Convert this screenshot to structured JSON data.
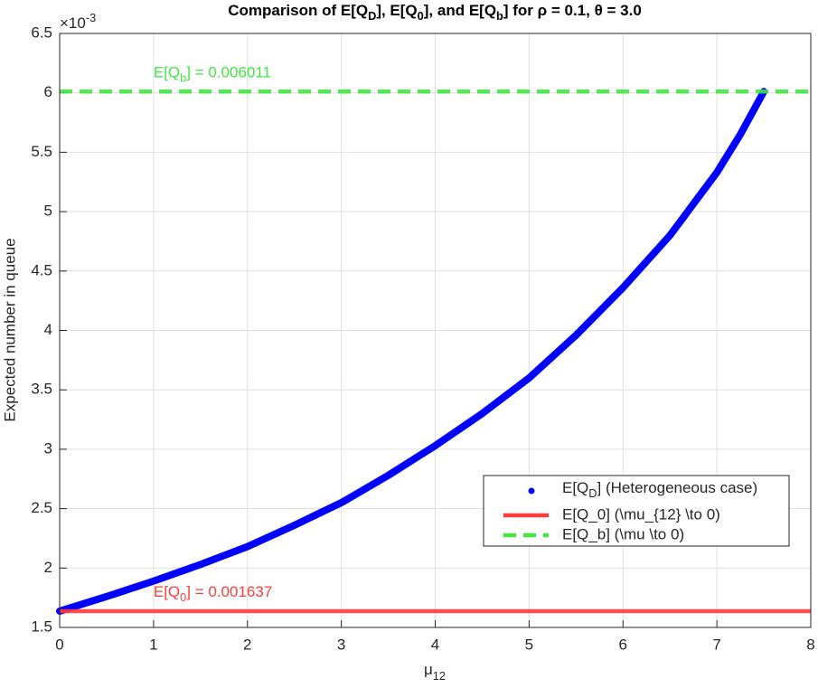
{
  "chart_data": {
    "type": "scatter",
    "title": [
      "Comparison of E[Q",
      "D",
      "], E[Q",
      "0",
      "], and E[Q",
      "b",
      "] for ρ = 0.1, θ = 3.0"
    ],
    "xlabel": [
      "μ",
      "12"
    ],
    "ylabel": "Expected number in queue",
    "y_exponent": [
      "×10",
      "-3"
    ],
    "xlim": [
      0,
      8
    ],
    "xticks": [
      0,
      1,
      2,
      3,
      4,
      5,
      6,
      7,
      8
    ],
    "ylim": [
      1.5,
      6.5
    ],
    "yticks": [
      1.5,
      2,
      2.5,
      3,
      3.5,
      4,
      4.5,
      5,
      5.5,
      6,
      6.5
    ],
    "grid": true,
    "legend": "southeast",
    "series": [
      {
        "name": [
          "E[Q",
          "D",
          "] (Heterogeneous case)"
        ],
        "color": "#0000ff",
        "x": [
          0,
          0.5,
          1,
          1.5,
          2,
          2.5,
          3,
          3.5,
          4,
          4.5,
          5,
          5.5,
          6,
          6.5,
          7,
          7.25,
          7.5
        ],
        "values": [
          1.637,
          1.76,
          1.89,
          2.03,
          2.18,
          2.36,
          2.55,
          2.78,
          3.03,
          3.3,
          3.6,
          3.96,
          4.36,
          4.8,
          5.33,
          5.65,
          6.011
        ]
      },
      {
        "name": "E[Q_0] (\\mu_{12} \\to 0)",
        "color": "#ff3b3b",
        "style": "solid",
        "value": 1.637,
        "annotation": [
          "E[Q",
          "0",
          "] = 0.001637"
        ]
      },
      {
        "name": "E[Q_b] (\\mu \\to 0)",
        "color": "#3ee83e",
        "style": "dashed",
        "value": 6.011,
        "annotation": [
          "E[Q",
          "b",
          "] = 0.006011"
        ]
      }
    ]
  }
}
